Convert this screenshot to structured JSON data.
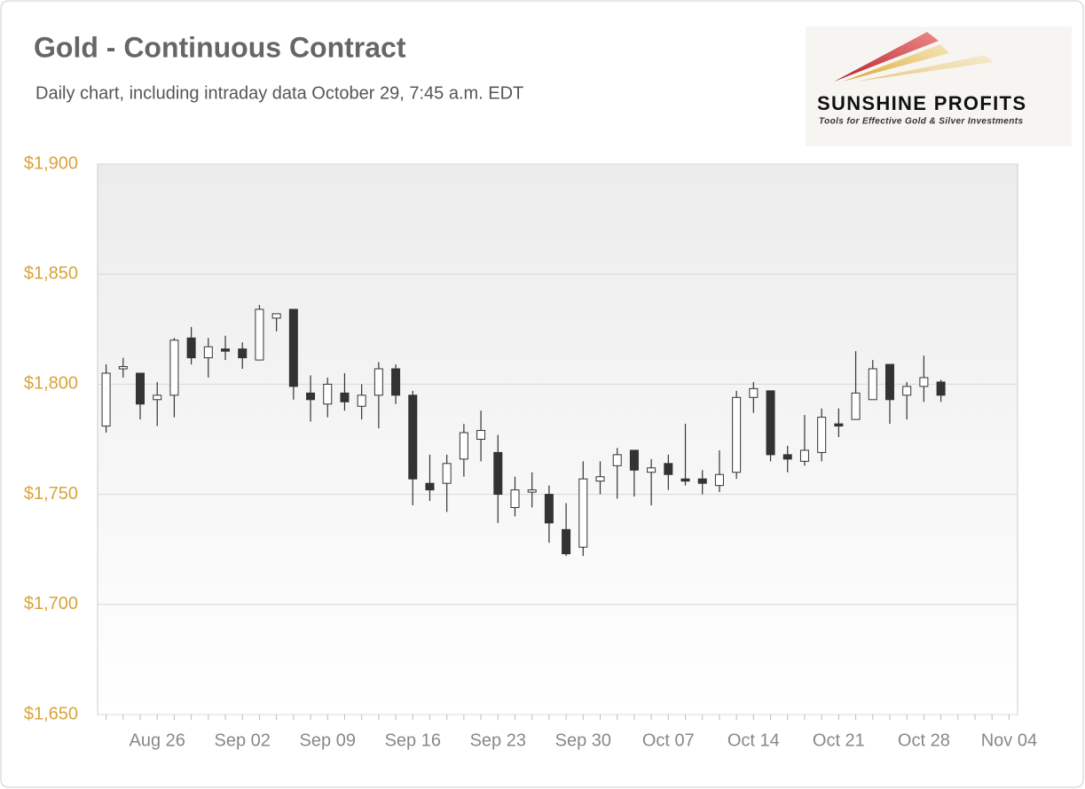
{
  "chart_data": {
    "type": "candlestick",
    "title": "Gold - Continuous Contract",
    "subtitle": "Daily chart, including intraday data October 29, 7:45 a.m. EDT",
    "categories": [
      null,
      null,
      null,
      "Aug 26",
      null,
      null,
      null,
      null,
      "Sep 02",
      null,
      null,
      null,
      null,
      "Sep 09",
      null,
      null,
      null,
      null,
      "Sep 16",
      null,
      null,
      null,
      null,
      "Sep 23",
      null,
      null,
      null,
      null,
      "Sep 30",
      null,
      null,
      null,
      null,
      "Oct 07",
      null,
      null,
      null,
      null,
      "Oct 14",
      null,
      null,
      null,
      null,
      "Oct 21",
      null,
      null,
      null,
      null,
      "Oct 28",
      null,
      null,
      null,
      null,
      "Nov 04"
    ],
    "open": [
      1781,
      1807,
      1805,
      1793,
      1795,
      1821,
      1812,
      1816,
      1816,
      1811,
      1830,
      1834,
      1796,
      1791,
      1796,
      1790,
      1795,
      1807,
      1795,
      1755,
      1755,
      1766,
      1775,
      1769,
      1744,
      1751,
      1750,
      1734,
      1726,
      1756,
      1763,
      1770,
      1760,
      1764,
      1757,
      1757,
      1754,
      1760,
      1794,
      1797,
      1768,
      1765,
      1769,
      1782,
      1784,
      1793,
      1809,
      1795,
      1799,
      1801,
      null,
      null,
      null,
      null
    ],
    "high": [
      1809,
      1812,
      1805,
      1801,
      1821,
      1826,
      1821,
      1822,
      1819,
      1836,
      1832,
      1834,
      1804,
      1803,
      1805,
      1800,
      1810,
      1809,
      1797,
      1768,
      1768,
      1782,
      1788,
      1777,
      1758,
      1760,
      1754,
      1746,
      1765,
      1765,
      1771,
      1770,
      1766,
      1768,
      1782,
      1761,
      1770,
      1797,
      1801,
      1797,
      1772,
      1786,
      1789,
      1789,
      1815,
      1811,
      1809,
      1801,
      1813,
      1802,
      null,
      null,
      null,
      null
    ],
    "low": [
      1778,
      1803,
      1784,
      1781,
      1785,
      1809,
      1803,
      1811,
      1807,
      1811,
      1824,
      1793,
      1783,
      1785,
      1788,
      1784,
      1780,
      1791,
      1745,
      1747,
      1742,
      1758,
      1765,
      1737,
      1740,
      1744,
      1728,
      1722,
      1722,
      1750,
      1748,
      1749,
      1745,
      1752,
      1754,
      1750,
      1751,
      1757,
      1787,
      1765,
      1760,
      1763,
      1765,
      1776,
      1784,
      1793,
      1782,
      1784,
      1792,
      1792,
      null,
      null,
      null,
      null
    ],
    "close": [
      1805,
      1808,
      1791,
      1795,
      1820,
      1812,
      1817,
      1815,
      1812,
      1834,
      1832,
      1799,
      1793,
      1800,
      1792,
      1795,
      1807,
      1795,
      1757,
      1752,
      1764,
      1778,
      1779,
      1750,
      1752,
      1752,
      1737,
      1723,
      1757,
      1758,
      1768,
      1761,
      1762,
      1759,
      1756,
      1755,
      1759,
      1794,
      1798,
      1768,
      1766,
      1770,
      1785,
      1781,
      1796,
      1807,
      1793,
      1799,
      1803,
      1795,
      null,
      null,
      null,
      null
    ],
    "up_color": "#ffffff",
    "down_color": "#333333",
    "ylim": [
      1650,
      1900
    ],
    "yticks": [
      {
        "value": 1650,
        "label": "$1,650"
      },
      {
        "value": 1700,
        "label": "$1,700"
      },
      {
        "value": 1750,
        "label": "$1,750"
      },
      {
        "value": 1800,
        "label": "$1,800"
      },
      {
        "value": 1850,
        "label": "$1,850"
      },
      {
        "value": 1900,
        "label": "$1,900"
      }
    ],
    "grid": true
  },
  "logo": {
    "name": "SUNSHINE PROFITS",
    "tagline": "Tools for Effective Gold & Silver Investments"
  }
}
